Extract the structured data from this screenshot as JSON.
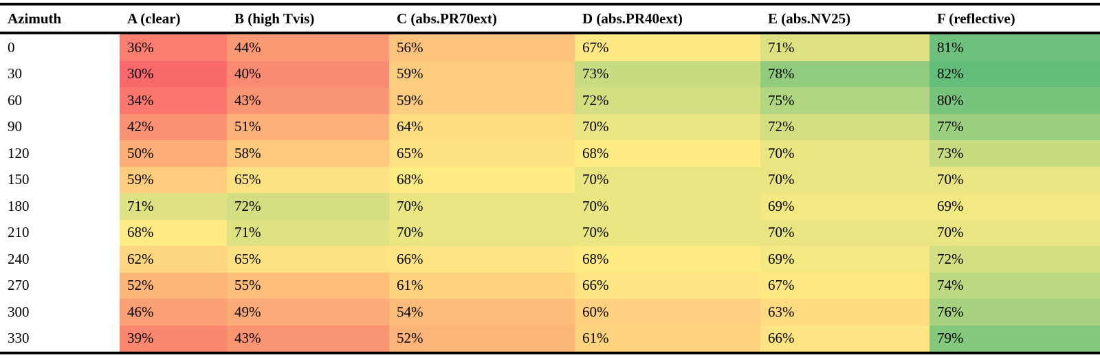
{
  "chart_data": {
    "type": "heatmap",
    "row_header": "Azimuth",
    "columns": [
      "A (clear)",
      "B (high Tvis)",
      "C (abs.PR70ext)",
      "D (abs.PR40ext)",
      "E (abs.NV25)",
      "F (reflective)"
    ],
    "rows": [
      "0",
      "30",
      "60",
      "90",
      "120",
      "150",
      "180",
      "210",
      "240",
      "270",
      "300",
      "330"
    ],
    "values": [
      [
        36,
        44,
        56,
        67,
        71,
        81
      ],
      [
        30,
        40,
        59,
        73,
        78,
        82
      ],
      [
        34,
        43,
        59,
        72,
        75,
        80
      ],
      [
        42,
        51,
        64,
        70,
        72,
        77
      ],
      [
        50,
        58,
        65,
        68,
        70,
        73
      ],
      [
        59,
        65,
        68,
        70,
        70,
        70
      ],
      [
        71,
        72,
        70,
        70,
        69,
        69
      ],
      [
        68,
        71,
        70,
        70,
        70,
        70
      ],
      [
        62,
        65,
        66,
        68,
        69,
        72
      ],
      [
        52,
        55,
        61,
        66,
        67,
        74
      ],
      [
        46,
        49,
        54,
        60,
        63,
        76
      ],
      [
        39,
        43,
        52,
        61,
        66,
        79
      ]
    ],
    "value_suffix": "%",
    "color_scale": {
      "low": "#f8696b",
      "mid": "#ffeb84",
      "high": "#63be7b",
      "mid_value": 68
    }
  }
}
